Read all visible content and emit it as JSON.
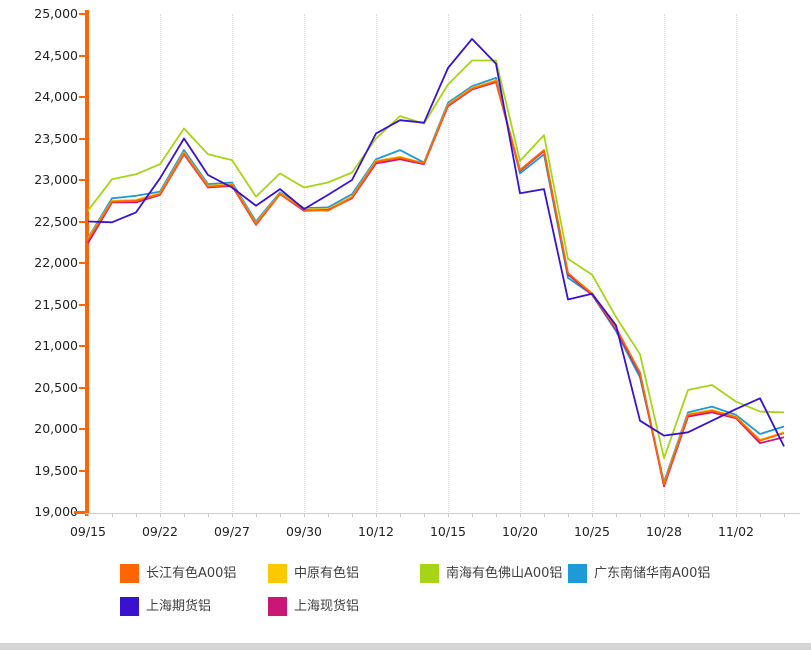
{
  "chart_data": {
    "type": "line",
    "title": "",
    "xlabel": "",
    "ylabel": "",
    "grid": "vertical-dotted",
    "legend_position": "bottom",
    "y_axis": {
      "min": 19000,
      "max": 25000,
      "step": 500,
      "axis_color": "#FF6600",
      "tick_labels": [
        "25,000",
        "24,500",
        "24,000",
        "23,500",
        "23,000",
        "22,500",
        "22,000",
        "21,500",
        "21,000",
        "20,500",
        "20,000",
        "19,500",
        "19,000"
      ]
    },
    "x_axis": {
      "tick_labels": [
        "09/15",
        "09/22",
        "09/27",
        "09/30",
        "10/12",
        "10/15",
        "10/20",
        "10/25",
        "10/28",
        "11/02"
      ],
      "label_every_n_points": 3,
      "points_per_series": 30
    },
    "series": [
      {
        "name": "长江有色A00铝",
        "color": "#FF6600",
        "values": [
          22280,
          22740,
          22750,
          22830,
          23320,
          22920,
          22940,
          22470,
          22830,
          22640,
          22630,
          22790,
          23220,
          23270,
          23200,
          23900,
          24100,
          24190,
          23120,
          23360,
          21880,
          21630,
          21220,
          20680,
          19330,
          20170,
          20220,
          20140,
          19860,
          19950
        ]
      },
      {
        "name": "中原有色铝",
        "color": "#FCC800",
        "values": [
          22290,
          22750,
          22760,
          22840,
          23330,
          22930,
          22950,
          22480,
          22840,
          22650,
          22650,
          22800,
          23230,
          23280,
          23200,
          23910,
          24110,
          24200,
          23110,
          23350,
          21870,
          21640,
          21210,
          20670,
          19340,
          20180,
          20230,
          20150,
          19870,
          19960
        ]
      },
      {
        "name": "南海有色佛山A00铝",
        "color": "#A6D515",
        "values": [
          22630,
          23010,
          23070,
          23190,
          23620,
          23310,
          23240,
          22800,
          23080,
          22910,
          22970,
          23090,
          23500,
          23770,
          23680,
          24150,
          24440,
          24440,
          23230,
          23540,
          22050,
          21860,
          21350,
          20900,
          19650,
          20470,
          20530,
          20330,
          20210,
          20200
        ]
      },
      {
        "name": "广东南储华南A00铝",
        "color": "#1E9AD6",
        "values": [
          22300,
          22780,
          22810,
          22860,
          23360,
          22950,
          22970,
          22500,
          22850,
          22660,
          22670,
          22830,
          23250,
          23360,
          23210,
          23930,
          24130,
          24230,
          23080,
          23310,
          21820,
          21620,
          21180,
          20620,
          19360,
          20200,
          20270,
          20170,
          19940,
          20030
        ]
      },
      {
        "name": "上海期货铝",
        "color": "#3912D0",
        "values": [
          22500,
          22490,
          22610,
          23020,
          23500,
          23060,
          22910,
          22690,
          22890,
          22650,
          22820,
          23000,
          23560,
          23720,
          23690,
          24350,
          24700,
          24400,
          22840,
          22890,
          21560,
          21630,
          21250,
          20100,
          19920,
          19960,
          20100,
          20240,
          20370,
          19790
        ]
      },
      {
        "name": "上海现货铝",
        "color": "#CC1677",
        "values": [
          22240,
          22730,
          22730,
          22820,
          23310,
          22910,
          22930,
          22460,
          22830,
          22630,
          22640,
          22780,
          23200,
          23250,
          23190,
          23890,
          24090,
          24180,
          23110,
          23350,
          21860,
          21620,
          21200,
          20660,
          19310,
          20150,
          20200,
          20130,
          19830,
          19900
        ]
      }
    ]
  }
}
